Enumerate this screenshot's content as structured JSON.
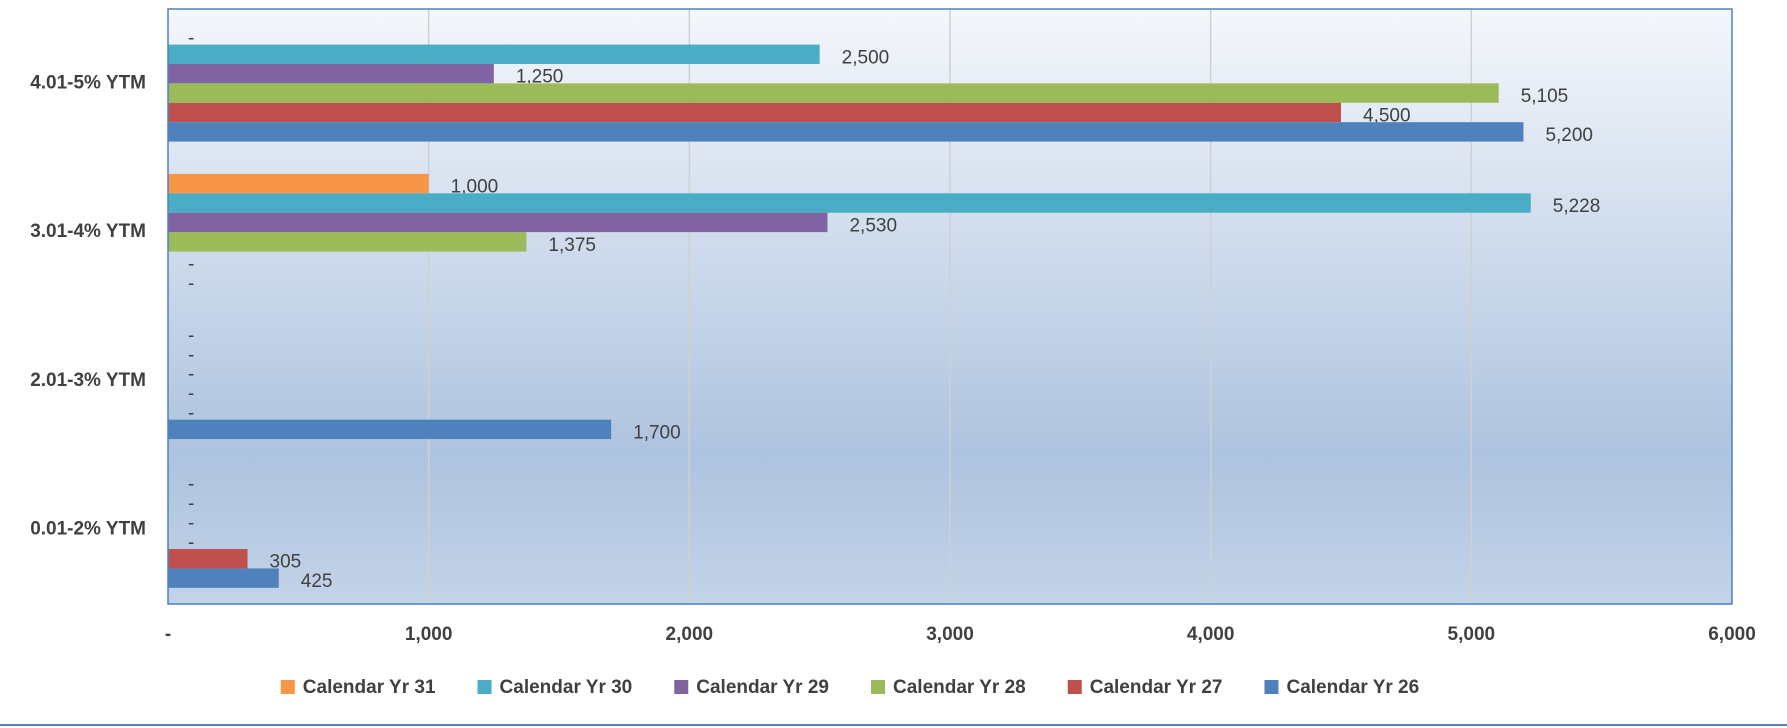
{
  "chart_data": {
    "type": "hbar",
    "categories": [
      "4.01-5% YTM",
      "3.01-4% YTM",
      "2.01-3% YTM",
      "0.01-2% YTM"
    ],
    "series": [
      {
        "name": "Calendar Yr 31",
        "color": "#f79646",
        "values": [
          0,
          1000,
          0,
          0
        ],
        "value_labels": [
          "-",
          "1,000",
          "-",
          "-"
        ]
      },
      {
        "name": "Calendar Yr 30",
        "color": "#4bacc6",
        "values": [
          2500,
          5228,
          0,
          0
        ],
        "value_labels": [
          "2,500",
          "5,228",
          "-",
          "-"
        ]
      },
      {
        "name": "Calendar Yr 29",
        "color": "#8064a2",
        "values": [
          1250,
          2530,
          0,
          0
        ],
        "value_labels": [
          "1,250",
          "2,530",
          "-",
          "-"
        ]
      },
      {
        "name": "Calendar Yr 28",
        "color": "#9bbb59",
        "values": [
          5105,
          1375,
          0,
          0
        ],
        "value_labels": [
          "5,105",
          "1,375",
          "-",
          "-"
        ]
      },
      {
        "name": "Calendar Yr 27",
        "color": "#c0504d",
        "values": [
          4500,
          0,
          0,
          305
        ],
        "value_labels": [
          "4,500",
          "-",
          "-",
          "305"
        ]
      },
      {
        "name": "Calendar Yr 26",
        "color": "#4f81bd",
        "values": [
          5200,
          0,
          1700,
          425
        ],
        "value_labels": [
          "5,200",
          "-",
          "1,700",
          "425"
        ]
      }
    ],
    "xlim": [
      0,
      6000
    ],
    "xticks": [
      {
        "value": 0,
        "label": "-"
      },
      {
        "value": 1000,
        "label": "1,000"
      },
      {
        "value": 2000,
        "label": "2,000"
      },
      {
        "value": 3000,
        "label": "3,000"
      },
      {
        "value": 4000,
        "label": "4,000"
      },
      {
        "value": 5000,
        "label": "5,000"
      },
      {
        "value": 6000,
        "label": "6,000"
      }
    ],
    "grid": true,
    "legend": "bottom"
  }
}
